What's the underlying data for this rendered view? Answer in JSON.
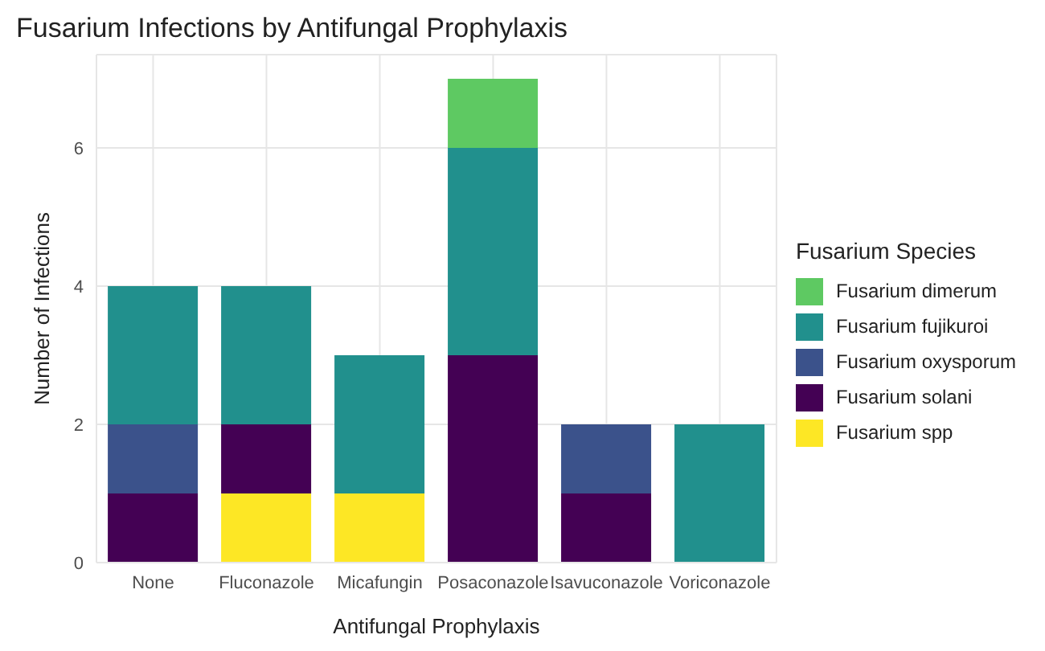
{
  "chart_data": {
    "type": "bar",
    "title": "Fusarium Infections by Antifungal Prophylaxis",
    "xlabel": "Antifungal Prophylaxis",
    "ylabel": "Number of Infections",
    "legend_title": "Fusarium Species",
    "categories": [
      "None",
      "Fluconazole",
      "Micafungin",
      "Posaconazole",
      "Isavuconazole",
      "Voriconazole"
    ],
    "stacked": true,
    "ylim": [
      0,
      7.35
    ],
    "yticks": [
      0,
      2,
      4,
      6
    ],
    "grid": true,
    "legend": "right",
    "series": [
      {
        "name": "Fusarium spp",
        "color": "#fde725",
        "values": [
          0,
          1,
          1,
          0,
          0,
          0
        ]
      },
      {
        "name": "Fusarium solani",
        "color": "#440154",
        "values": [
          1,
          1,
          0,
          3,
          1,
          0
        ]
      },
      {
        "name": "Fusarium oxysporum",
        "color": "#3b528b",
        "values": [
          1,
          0,
          0,
          0,
          1,
          0
        ]
      },
      {
        "name": "Fusarium fujikuroi",
        "color": "#21908d",
        "values": [
          2,
          2,
          2,
          3,
          0,
          2
        ]
      },
      {
        "name": "Fusarium dimerum",
        "color": "#5ec962",
        "values": [
          0,
          0,
          0,
          1,
          0,
          0
        ]
      }
    ]
  }
}
